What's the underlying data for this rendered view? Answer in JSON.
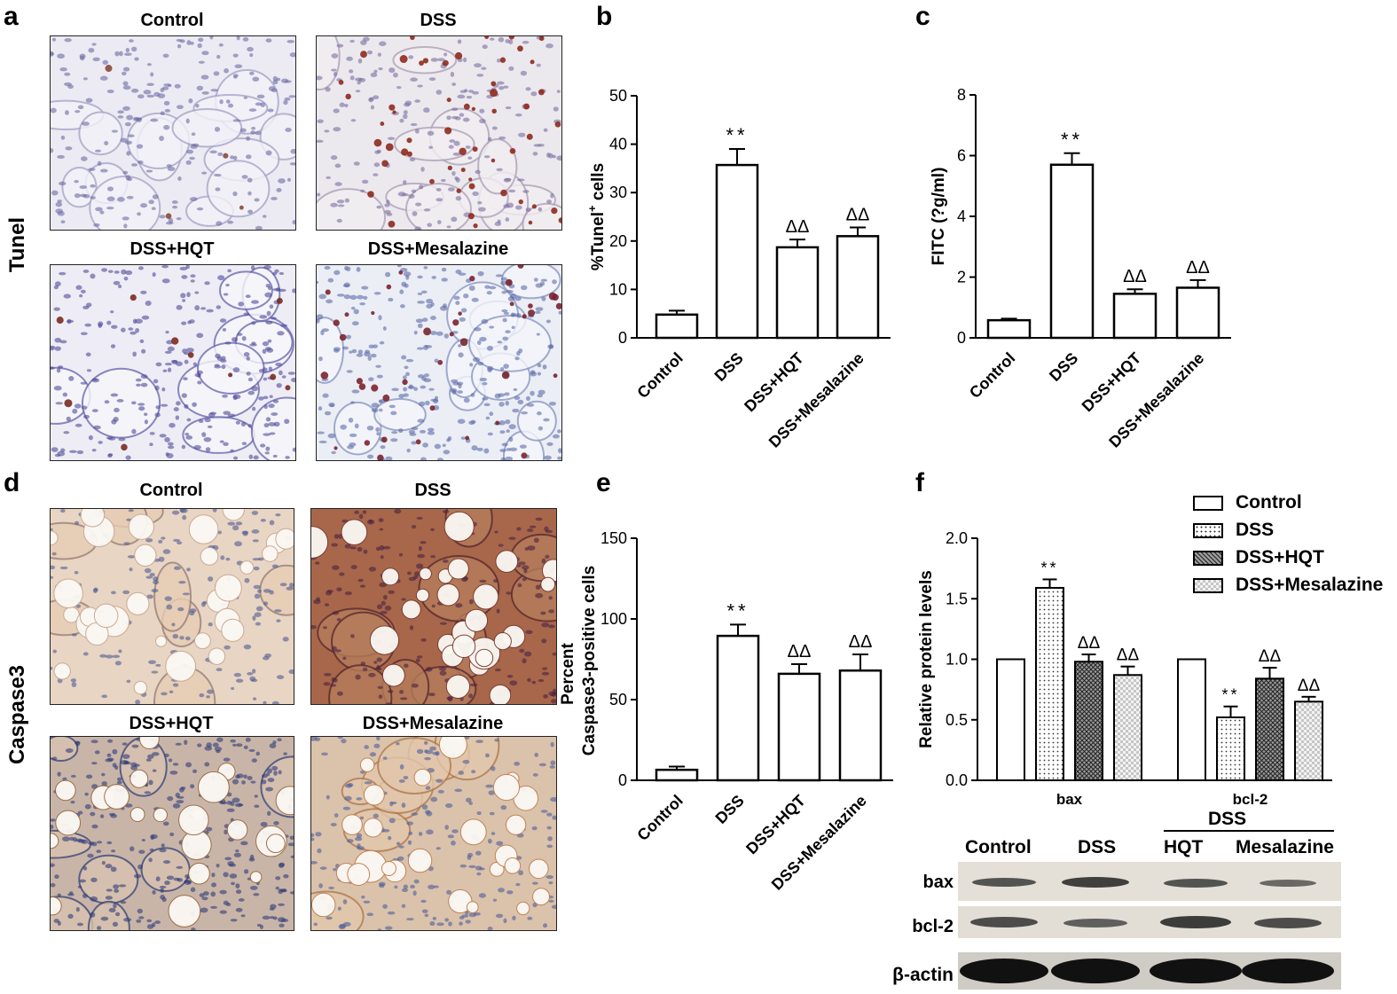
{
  "panels": {
    "a": {
      "letter": "a",
      "row_label": "Tunel",
      "images": [
        "Control",
        "DSS",
        "DSS+HQT",
        "DSS+Mesalazine"
      ]
    },
    "b": {
      "letter": "b"
    },
    "c": {
      "letter": "c"
    },
    "d": {
      "letter": "d",
      "row_label": "Caspase3",
      "images": [
        "Control",
        "DSS",
        "DSS+HQT",
        "DSS+Mesalazine"
      ]
    },
    "e": {
      "letter": "e"
    },
    "f": {
      "letter": "f"
    }
  },
  "chart_data": [
    {
      "id": "b",
      "type": "bar",
      "categories": [
        "Control",
        "DSS",
        "DSS+HQT",
        "DSS+Mesalazine"
      ],
      "values": [
        4.8,
        35.7,
        18.7,
        21.0
      ],
      "errors": [
        0.8,
        3.3,
        1.6,
        1.8
      ],
      "annotations": [
        "",
        "**",
        "ΔΔ",
        "ΔΔ"
      ],
      "ylabel": "%Tunel",
      "ylabel_sup": "+",
      "ylabel_suffix": " cells",
      "ylim": [
        0,
        50
      ],
      "yticks": [
        0,
        10,
        20,
        30,
        40,
        50
      ]
    },
    {
      "id": "c",
      "type": "bar",
      "categories": [
        "Control",
        "DSS",
        "DSS+HQT",
        "DSS+Mesalazine"
      ],
      "values": [
        0.58,
        5.7,
        1.45,
        1.65
      ],
      "errors": [
        0.05,
        0.38,
        0.15,
        0.25
      ],
      "annotations": [
        "",
        "**",
        "ΔΔ",
        "ΔΔ"
      ],
      "ylabel": "FITC (?g/ml)",
      "ylim": [
        0,
        8
      ],
      "yticks": [
        0,
        2,
        4,
        6,
        8
      ]
    },
    {
      "id": "e",
      "type": "bar",
      "categories": [
        "Control",
        "DSS",
        "DSS+HQT",
        "DSS+Mesalazine"
      ],
      "values": [
        6.5,
        89.5,
        66.0,
        68.0
      ],
      "errors": [
        2.0,
        7.0,
        6.0,
        10.0
      ],
      "annotations": [
        "",
        "**",
        "ΔΔ",
        "ΔΔ"
      ],
      "ylabel_line1": "Percent",
      "ylabel_line2": "Caspase3-positive cells",
      "ylim": [
        0,
        150
      ],
      "yticks": [
        0,
        50,
        100,
        150
      ]
    },
    {
      "id": "f",
      "type": "bar",
      "categories": [
        "bax",
        "bcl-2"
      ],
      "series": [
        {
          "name": "Control",
          "values": [
            1.0,
            1.0
          ],
          "errors": [
            0,
            0
          ],
          "annotations": [
            "",
            ""
          ],
          "pattern": "white"
        },
        {
          "name": "DSS",
          "values": [
            1.59,
            0.52
          ],
          "errors": [
            0.07,
            0.09
          ],
          "annotations": [
            "**",
            "**"
          ],
          "pattern": "dots"
        },
        {
          "name": "DSS+HQT",
          "values": [
            0.98,
            0.84
          ],
          "errors": [
            0.06,
            0.09
          ],
          "annotations": [
            "ΔΔ",
            "ΔΔ"
          ],
          "pattern": "crosshatch"
        },
        {
          "name": "DSS+Mesalazine",
          "values": [
            0.87,
            0.65
          ],
          "errors": [
            0.07,
            0.04
          ],
          "annotations": [
            "ΔΔ",
            "ΔΔ"
          ],
          "pattern": "checker"
        }
      ],
      "ylabel": "Relative protein levels",
      "ylim": [
        0,
        2.0
      ],
      "yticks": [
        "0.0",
        "0.5",
        "1.0",
        "1.5",
        "2.0"
      ],
      "legend_position": "top-right"
    }
  ],
  "blot": {
    "group_label": "DSS",
    "columns": [
      "Control",
      "DSS",
      "HQT",
      "Mesalazine"
    ],
    "rows": [
      "bax",
      "bcl-2",
      "β-actin"
    ]
  }
}
